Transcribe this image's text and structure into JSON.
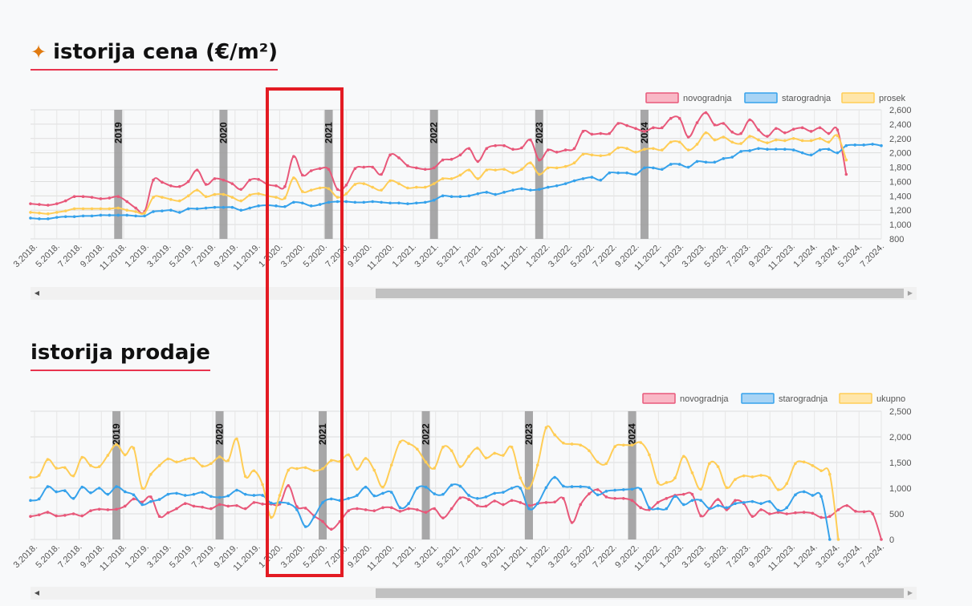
{
  "prices": {
    "title": "istorija cena (€/m²)",
    "icon": "sparkle-icon",
    "scroll_left": "◀",
    "scroll_right": "▶"
  },
  "sales": {
    "title": "istorija prodaje",
    "scroll_left": "◀",
    "scroll_right": "▶"
  },
  "colors": {
    "novogradnja": "#e8587a",
    "starogradnja": "#36a2eb",
    "third": "#ffcd56",
    "year_bar": "#999999",
    "highlight": "#e31b23"
  },
  "chart_data": [
    {
      "type": "line",
      "title": "",
      "x_labels": [
        "3.2018.",
        "5.2018.",
        "7.2018.",
        "9.2018.",
        "11.2018.",
        "1.2019.",
        "3.2019.",
        "5.2019.",
        "7.2019.",
        "9.2019.",
        "11.2019.",
        "1.2020.",
        "3.2020.",
        "5.2020.",
        "7.2020.",
        "9.2020.",
        "11.2020.",
        "1.2021.",
        "3.2021.",
        "5.2021.",
        "7.2021.",
        "9.2021.",
        "11.2021.",
        "1.2022.",
        "3.2022.",
        "5.2022.",
        "7.2022.",
        "9.2022.",
        "11.2022.",
        "1.2023.",
        "3.2023.",
        "5.2023.",
        "7.2023.",
        "9.2023.",
        "11.2023.",
        "1.2024.",
        "3.2024.",
        "5.2024.",
        "7.2024."
      ],
      "year_markers": [
        {
          "label": "2019",
          "index": 10
        },
        {
          "label": "2020",
          "index": 22
        },
        {
          "label": "2021",
          "index": 34
        },
        {
          "label": "2022",
          "index": 46
        },
        {
          "label": "2023",
          "index": 58
        },
        {
          "label": "2024",
          "index": 70
        }
      ],
      "ylim": [
        800,
        2600
      ],
      "yticks": [
        800,
        1000,
        1200,
        1400,
        1600,
        1800,
        2000,
        2200,
        2400,
        2600
      ],
      "ytick_labels": [
        "800",
        "1,000",
        "1,200",
        "1,400",
        "1,600",
        "1,800",
        "2,000",
        "2,200",
        "2,400",
        "2,600"
      ],
      "legend_position": "top-right",
      "series": [
        {
          "name": "novogradnja",
          "values": [
            1290,
            1280,
            1270,
            1290,
            1330,
            1390,
            1390,
            1380,
            1360,
            1370,
            1390,
            1320,
            1230,
            1180,
            1620,
            1590,
            1540,
            1530,
            1600,
            1760,
            1560,
            1640,
            1620,
            1570,
            1490,
            1620,
            1630,
            1560,
            1540,
            1530,
            1950,
            1690,
            1750,
            1780,
            1770,
            1490,
            1550,
            1780,
            1800,
            1800,
            1700,
            1970,
            1930,
            1820,
            1790,
            1770,
            1790,
            1900,
            1910,
            1970,
            2060,
            1880,
            2060,
            2100,
            2100,
            2050,
            2070,
            2180,
            1900,
            2040,
            2010,
            2040,
            2060,
            2300,
            2260,
            2270,
            2270,
            2410,
            2380,
            2340,
            2300,
            2350,
            2350,
            2480,
            2480,
            2220,
            2420,
            2560,
            2390,
            2410,
            2290,
            2270,
            2460,
            2320,
            2230,
            2340,
            2280,
            2330,
            2350,
            2300,
            2350,
            2270,
            2320,
            1700
          ]
        },
        {
          "name": "starogradnja",
          "values": [
            1090,
            1080,
            1080,
            1100,
            1110,
            1110,
            1120,
            1120,
            1130,
            1130,
            1130,
            1130,
            1120,
            1120,
            1180,
            1190,
            1200,
            1170,
            1220,
            1220,
            1230,
            1240,
            1240,
            1240,
            1200,
            1230,
            1260,
            1270,
            1260,
            1250,
            1310,
            1300,
            1260,
            1280,
            1310,
            1320,
            1320,
            1310,
            1310,
            1320,
            1310,
            1300,
            1300,
            1290,
            1300,
            1310,
            1340,
            1400,
            1390,
            1390,
            1400,
            1430,
            1450,
            1420,
            1450,
            1480,
            1500,
            1480,
            1490,
            1520,
            1540,
            1570,
            1610,
            1640,
            1660,
            1620,
            1720,
            1720,
            1720,
            1700,
            1790,
            1790,
            1770,
            1840,
            1840,
            1800,
            1880,
            1870,
            1870,
            1920,
            1940,
            2020,
            2030,
            2060,
            2050,
            2050,
            2050,
            2040,
            2000,
            1970,
            2040,
            2050,
            2000,
            2100,
            2110,
            2110,
            2120,
            2100
          ]
        },
        {
          "name": "prosek",
          "values": [
            1170,
            1160,
            1150,
            1170,
            1190,
            1220,
            1220,
            1220,
            1220,
            1220,
            1230,
            1200,
            1180,
            1160,
            1380,
            1380,
            1350,
            1330,
            1400,
            1480,
            1390,
            1420,
            1420,
            1380,
            1330,
            1410,
            1430,
            1400,
            1380,
            1370,
            1650,
            1460,
            1480,
            1510,
            1500,
            1380,
            1430,
            1560,
            1570,
            1520,
            1480,
            1610,
            1570,
            1510,
            1520,
            1520,
            1570,
            1640,
            1640,
            1690,
            1760,
            1640,
            1760,
            1760,
            1770,
            1720,
            1770,
            1860,
            1700,
            1790,
            1790,
            1810,
            1860,
            1980,
            1970,
            1960,
            1980,
            2070,
            2060,
            2010,
            2050,
            2060,
            2040,
            2150,
            2150,
            2040,
            2120,
            2280,
            2180,
            2220,
            2150,
            2130,
            2230,
            2180,
            2140,
            2180,
            2170,
            2200,
            2170,
            2170,
            2200,
            2150,
            2240,
            1900
          ]
        }
      ]
    },
    {
      "type": "line",
      "title": "",
      "x_labels": [
        "3.2018.",
        "5.2018.",
        "7.2018.",
        "9.2018.",
        "11.2018.",
        "1.2019.",
        "3.2019.",
        "5.2019.",
        "7.2019.",
        "9.2019.",
        "11.2019.",
        "1.2020.",
        "3.2020.",
        "5.2020.",
        "7.2020.",
        "9.2020.",
        "11.2020.",
        "1.2021.",
        "3.2021.",
        "5.2021.",
        "7.2021.",
        "9.2021.",
        "11.2021.",
        "1.2022.",
        "3.2022.",
        "5.2022.",
        "7.2022.",
        "9.2022.",
        "11.2022.",
        "1.2023.",
        "3.2023.",
        "5.2023.",
        "7.2023.",
        "9.2023.",
        "11.2023.",
        "1.2024.",
        "3.2024.",
        "5.2024.",
        "7.2024."
      ],
      "year_markers": [
        {
          "label": "2019",
          "index": 10
        },
        {
          "label": "2020",
          "index": 22
        },
        {
          "label": "2021",
          "index": 34
        },
        {
          "label": "2022",
          "index": 46
        },
        {
          "label": "2023",
          "index": 58
        },
        {
          "label": "2024",
          "index": 70
        }
      ],
      "ylim": [
        0,
        2500
      ],
      "yticks": [
        0,
        500,
        1000,
        1500,
        2000,
        2500
      ],
      "ytick_labels": [
        "0",
        "500",
        "1,000",
        "1,500",
        "2,000",
        "2,500"
      ],
      "legend_position": "top-right",
      "series": [
        {
          "name": "novogradnja",
          "values": [
            450,
            480,
            530,
            460,
            470,
            500,
            460,
            560,
            590,
            580,
            590,
            650,
            790,
            730,
            830,
            450,
            520,
            600,
            700,
            650,
            630,
            600,
            680,
            650,
            660,
            600,
            720,
            690,
            690,
            690,
            1050,
            640,
            610,
            460,
            350,
            200,
            350,
            560,
            600,
            580,
            560,
            620,
            620,
            550,
            600,
            580,
            530,
            600,
            420,
            600,
            810,
            780,
            660,
            650,
            750,
            680,
            760,
            720,
            660,
            700,
            720,
            730,
            800,
            330,
            680,
            890,
            970,
            830,
            800,
            800,
            760,
            620,
            580,
            720,
            800,
            860,
            880,
            880,
            460,
            600,
            780,
            580,
            760,
            700,
            450,
            580,
            500,
            530,
            500,
            520,
            530,
            510,
            430,
            450,
            580,
            660,
            550,
            540,
            500,
            0
          ]
        },
        {
          "name": "starogradnja",
          "values": [
            760,
            790,
            1030,
            930,
            950,
            800,
            1020,
            910,
            1000,
            880,
            1030,
            930,
            870,
            680,
            740,
            780,
            880,
            900,
            860,
            880,
            920,
            840,
            820,
            850,
            960,
            880,
            860,
            860,
            710,
            720,
            700,
            580,
            250,
            440,
            720,
            790,
            760,
            800,
            860,
            1020,
            850,
            900,
            920,
            620,
            700,
            1000,
            1020,
            890,
            880,
            1060,
            1040,
            860,
            800,
            830,
            900,
            920,
            1000,
            1000,
            600,
            700,
            1010,
            1210,
            1040,
            1030,
            1030,
            1010,
            870,
            940,
            960,
            970,
            980,
            980,
            620,
            600,
            600,
            840,
            680,
            760,
            760,
            600,
            660,
            620,
            700,
            720,
            740,
            700,
            740,
            570,
            620,
            870,
            930,
            860,
            840,
            0
          ]
        },
        {
          "name": "ukupno",
          "values": [
            1210,
            1250,
            1560,
            1390,
            1400,
            1240,
            1600,
            1440,
            1420,
            1640,
            1850,
            1650,
            1780,
            1000,
            1270,
            1440,
            1570,
            1510,
            1560,
            1580,
            1430,
            1480,
            1610,
            1540,
            1960,
            1230,
            1340,
            1070,
            430,
            860,
            1350,
            1380,
            1400,
            1340,
            1380,
            1540,
            1520,
            1650,
            1370,
            1580,
            1350,
            1020,
            1450,
            1900,
            1870,
            1760,
            1510,
            1390,
            1800,
            1730,
            1420,
            1620,
            1780,
            1590,
            1680,
            1640,
            1800,
            1200,
            1000,
            1450,
            2180,
            2040,
            1880,
            1860,
            1840,
            1730,
            1510,
            1480,
            1810,
            1840,
            1840,
            1890,
            1650,
            1110,
            1110,
            1200,
            1620,
            1300,
            980,
            1480,
            1420,
            1010,
            1170,
            1240,
            1220,
            1250,
            1200,
            970,
            1090,
            1480,
            1510,
            1440,
            1340,
            1270,
            0
          ]
        }
      ]
    }
  ]
}
